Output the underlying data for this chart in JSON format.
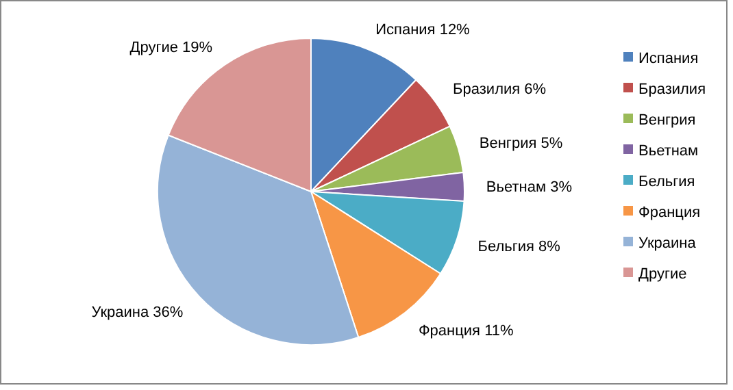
{
  "chart_data": {
    "type": "pie",
    "categories": [
      "Испания",
      "Бразилия",
      "Венгрия",
      "Вьетнам",
      "Бельгия",
      "Франция",
      "Украина",
      "Другие"
    ],
    "values": [
      12,
      6,
      5,
      3,
      8,
      11,
      36,
      19
    ],
    "value_labels": [
      "12%",
      "6%",
      "5%",
      "3%",
      "8%",
      "11%",
      "36%",
      "19%"
    ],
    "colors": [
      "#4f81bd",
      "#c0504d",
      "#9bbb59",
      "#8064a2",
      "#4bacc6",
      "#f79646",
      "#95b3d7",
      "#d99694"
    ],
    "legend": "right"
  }
}
